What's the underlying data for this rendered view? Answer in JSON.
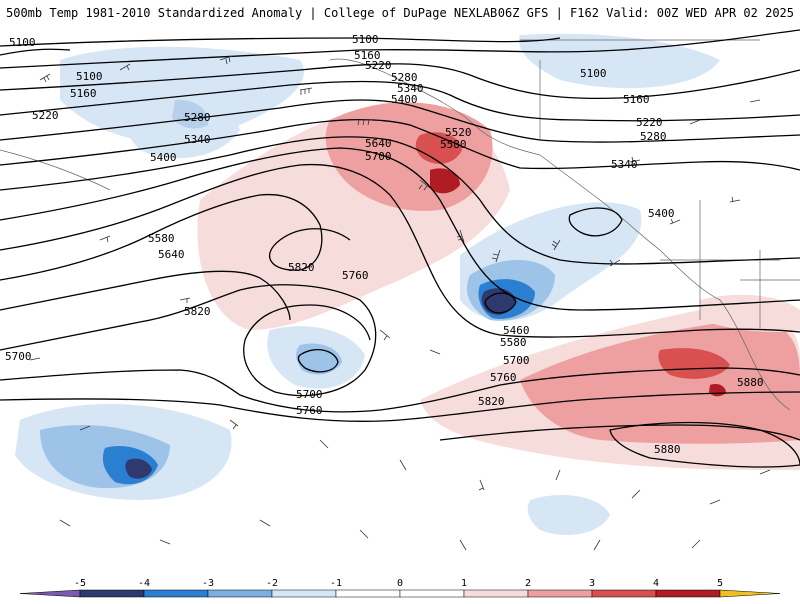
{
  "header": {
    "title_left": "500mb Temp 1981-2010 Standardized Anomaly | College of DuPage NEXLAB",
    "title_right": "06Z GFS | F162 Valid: 00Z WED APR 02 2025"
  },
  "colors": {
    "neg5": "#7a5bb0",
    "neg4": "#2e3a6e",
    "neg3": "#2b7fd0",
    "neg2": "#7bb0e0",
    "neg1": "#d7e6f5",
    "pos1": "#f7dcdc",
    "pos2": "#eea0a0",
    "pos3": "#d85050",
    "pos4": "#b01c24",
    "pos5": "#7a1018",
    "pos6": "#f0c020"
  },
  "legend": {
    "ticks": [
      "-5",
      "-4",
      "-3",
      "-2",
      "-1",
      "0",
      "1",
      "2",
      "3",
      "4",
      "5"
    ]
  },
  "contours": {
    "labels": [
      "5100",
      "5100",
      "5160",
      "5220",
      "5280",
      "5340",
      "5400",
      "5580",
      "5640",
      "5820",
      "5700",
      "5100",
      "5160",
      "5220",
      "5280",
      "5340",
      "5400",
      "5640",
      "5700",
      "5520",
      "5580",
      "5820",
      "5760",
      "5700",
      "5760",
      "5100",
      "5160",
      "5220",
      "5280",
      "5340",
      "5400",
      "5460",
      "5580",
      "5700",
      "5760",
      "5820",
      "5880",
      "5880"
    ]
  }
}
